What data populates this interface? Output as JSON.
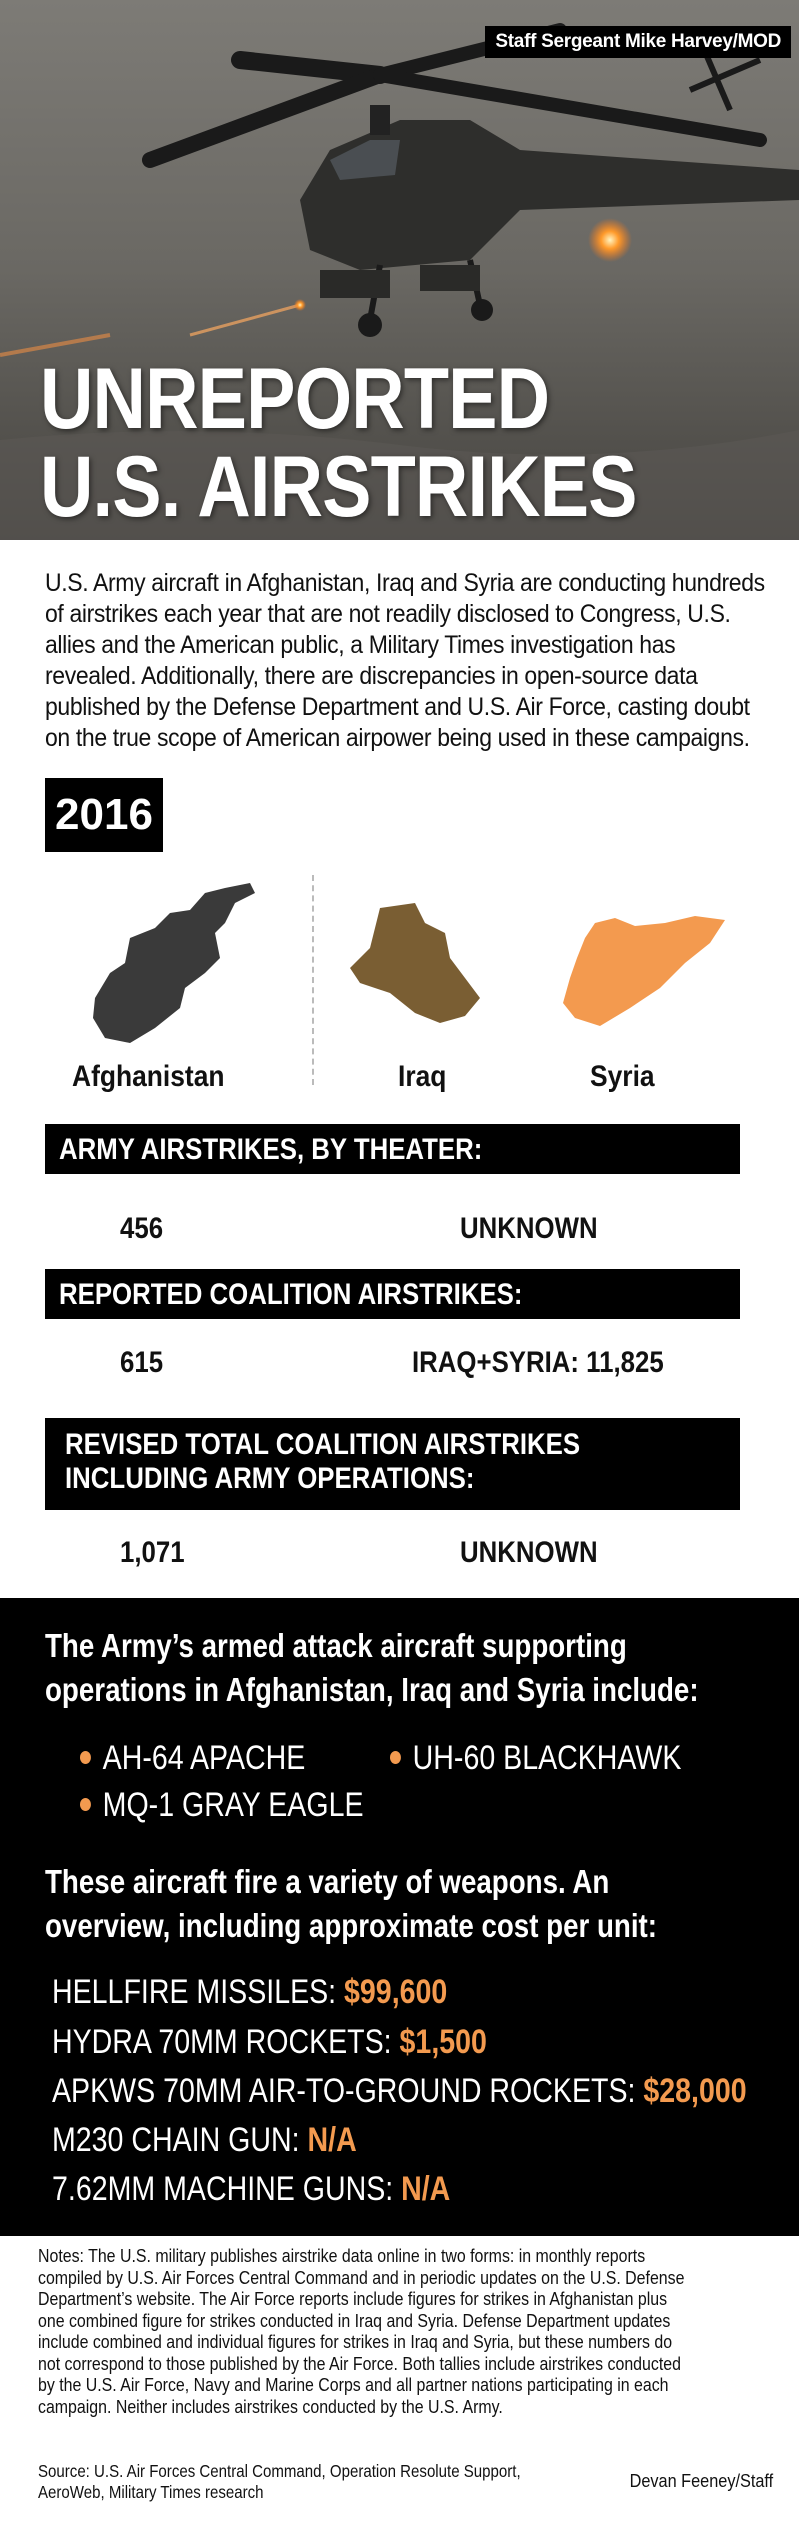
{
  "photo_credit": "Staff Sergeant Mike Harvey/MOD",
  "title_lines": [
    "UNREPORTED",
    "U.S. AIRSTRIKES"
  ],
  "intro_lines": [
    "U.S. Army aircraft in Afghanistan, Iraq and Syria are conducting hundreds",
    "of airstrikes each year that are not readily disclosed to Congress, U.S.",
    "allies and the American public, a Military Times investigation has",
    "revealed. Additionally, there are discrepancies in open-source data",
    "published by the Defense Department and U.S. Air Force, casting doubt",
    "on the true scope of American airpower being used in these campaigns."
  ],
  "year": "2016",
  "countries": {
    "afghanistan": {
      "name": "Afghanistan",
      "color": "#3a3a3a"
    },
    "iraq": {
      "name": "Iraq",
      "color": "#7a5e33"
    },
    "syria": {
      "name": "Syria",
      "color": "#f39a4f"
    }
  },
  "sections": {
    "army": {
      "label": "ARMY AIRSTRIKES, BY THEATER:",
      "afghanistan": "456",
      "iraq_syria": "UNKNOWN"
    },
    "reported": {
      "label": "REPORTED COALITION AIRSTRIKES:",
      "afghanistan": "615",
      "iraq_syria": "IRAQ+SYRIA: 11,825"
    },
    "revised": {
      "label_lines": [
        "REVISED TOTAL COALITION AIRSTRIKES",
        "INCLUDING ARMY OPERATIONS:"
      ],
      "afghanistan": "1,071",
      "iraq_syria": "UNKNOWN"
    }
  },
  "aircraft": {
    "heading_lines": [
      "The Army’s armed attack aircraft supporting",
      "operations in Afghanistan, Iraq and Syria include:"
    ],
    "items": [
      "AH-64 APACHE",
      "UH-60 BLACKHAWK",
      "MQ-1 GRAY EAGLE"
    ]
  },
  "weapons": {
    "heading_lines": [
      "These aircraft fire a variety of weapons. An",
      "overview, including approximate cost per unit:"
    ],
    "items": [
      {
        "name": "HELLFIRE MISSILES: ",
        "cost": "$99,600"
      },
      {
        "name": "HYDRA 70MM ROCKETS: ",
        "cost": "$1,500"
      },
      {
        "name": "APKWS 70MM AIR-TO-GROUND ROCKETS: ",
        "cost": "$28,000"
      },
      {
        "name": "M230 CHAIN GUN: ",
        "cost": "N/A"
      },
      {
        "name": "7.62MM MACHINE GUNS: ",
        "cost": "N/A"
      }
    ]
  },
  "accent_color": "#f39a4f",
  "notes_lines": [
    "Notes: The U.S. military publishes airstrike data online in two forms: in monthly reports",
    "compiled by U.S. Air Forces Central Command and in periodic updates on the U.S. Defense",
    "Department’s website. The Air Force reports include figures for strikes in Afghanistan plus",
    "one combined figure for strikes conducted in Iraq and Syria. Defense Department updates",
    "include combined and individual figures for strikes in Iraq and Syria, but these numbers do",
    "not correspond to those published by the Air Force. Both tallies include airstrikes conducted",
    "by the U.S. Air Force, Navy and Marine Corps and all partner nations participating in each",
    "campaign. Neither includes airstrikes conducted by the U.S. Army."
  ],
  "source_lines": [
    "Source: U.S. Air Forces Central Command, Operation Resolute Support,",
    "AeroWeb, Military Times research"
  ],
  "byline": "Devan Feeney/Staff"
}
